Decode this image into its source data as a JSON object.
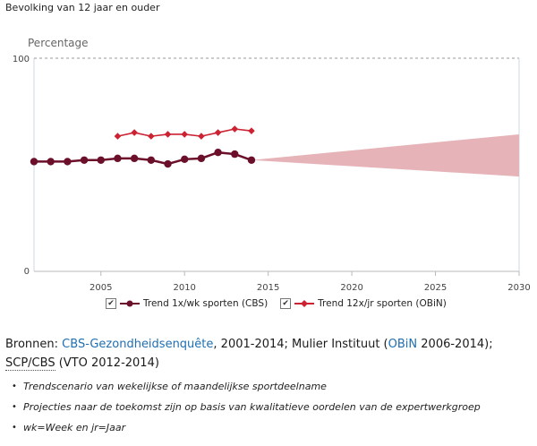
{
  "subtitle": "Bevolking van 12 jaar en ouder",
  "chart_data": {
    "type": "line",
    "ylabel": "Percentage",
    "xlabel": "",
    "ylim": [
      0,
      100
    ],
    "xlim": [
      2001,
      2030
    ],
    "y_ticks": [
      "0",
      "100"
    ],
    "x_ticks": [
      "2005",
      "2010",
      "2015",
      "2020",
      "2025",
      "2030"
    ],
    "series": [
      {
        "name": "Trend 1x/wk sporten (CBS)",
        "color": "#6b0f2a",
        "marker": "circle",
        "x": [
          2001,
          2002,
          2003,
          2004,
          2005,
          2006,
          2007,
          2008,
          2009,
          2010,
          2011,
          2012,
          2013,
          2014
        ],
        "values": [
          51.5,
          51.5,
          51.5,
          52.2,
          52.2,
          53.0,
          53.0,
          52.2,
          50.4,
          52.6,
          53.0,
          55.8,
          55.0,
          52.2
        ]
      },
      {
        "name": "Trend 12x/jr sporten (OBiN)",
        "color": "#cc2232",
        "marker": "diamond",
        "x": [
          2006,
          2007,
          2008,
          2009,
          2010,
          2011,
          2012,
          2013,
          2014
        ],
        "values": [
          63.4,
          65.1,
          63.4,
          64.3,
          64.3,
          63.4,
          65.1,
          66.8,
          65.9
        ]
      }
    ],
    "projection": {
      "color": "#e6b4b8",
      "from_x": 2014,
      "from_value": 52.2,
      "to_x": 2030,
      "to_low": 44.5,
      "to_high": 64.3
    },
    "grid": false
  },
  "sources": {
    "lead": "Bronnen: ",
    "link1": "CBS-Gezondheidsenquête",
    "text1": ", 2001-2014; Mulier Instituut (",
    "link2": "OBiN",
    "text2": " 2006-2014); ",
    "abbr": "SCP/CBS",
    "text3": " (VTO 2012-2014)"
  },
  "notes": [
    "Trendscenario van wekelijkse of maandelijkse sportdeelname",
    "Projecties naar de toekomst zijn op basis van kwalitatieve oordelen van de expertwerkgroep",
    "wk=Week en jr=Jaar"
  ],
  "legend_check": "✔",
  "bullet_glyph": "•"
}
